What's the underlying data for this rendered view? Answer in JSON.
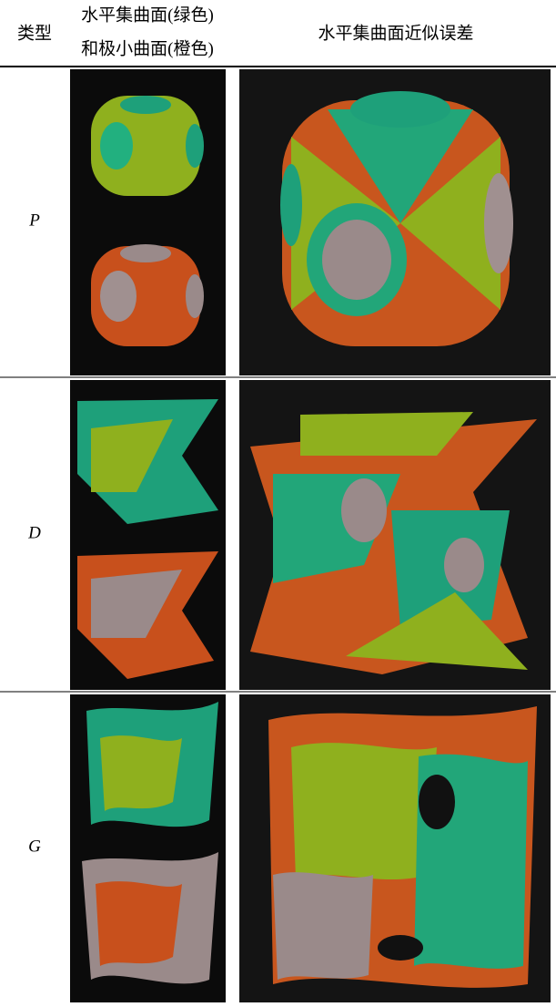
{
  "table": {
    "header": [
      "类型",
      "水平集曲面(绿色)",
      "和极小曲面(橙色)",
      "水平集曲面近似误差"
    ],
    "rows": [
      [
        "P"
      ],
      [
        "D"
      ],
      [
        "G"
      ]
    ]
  }
}
